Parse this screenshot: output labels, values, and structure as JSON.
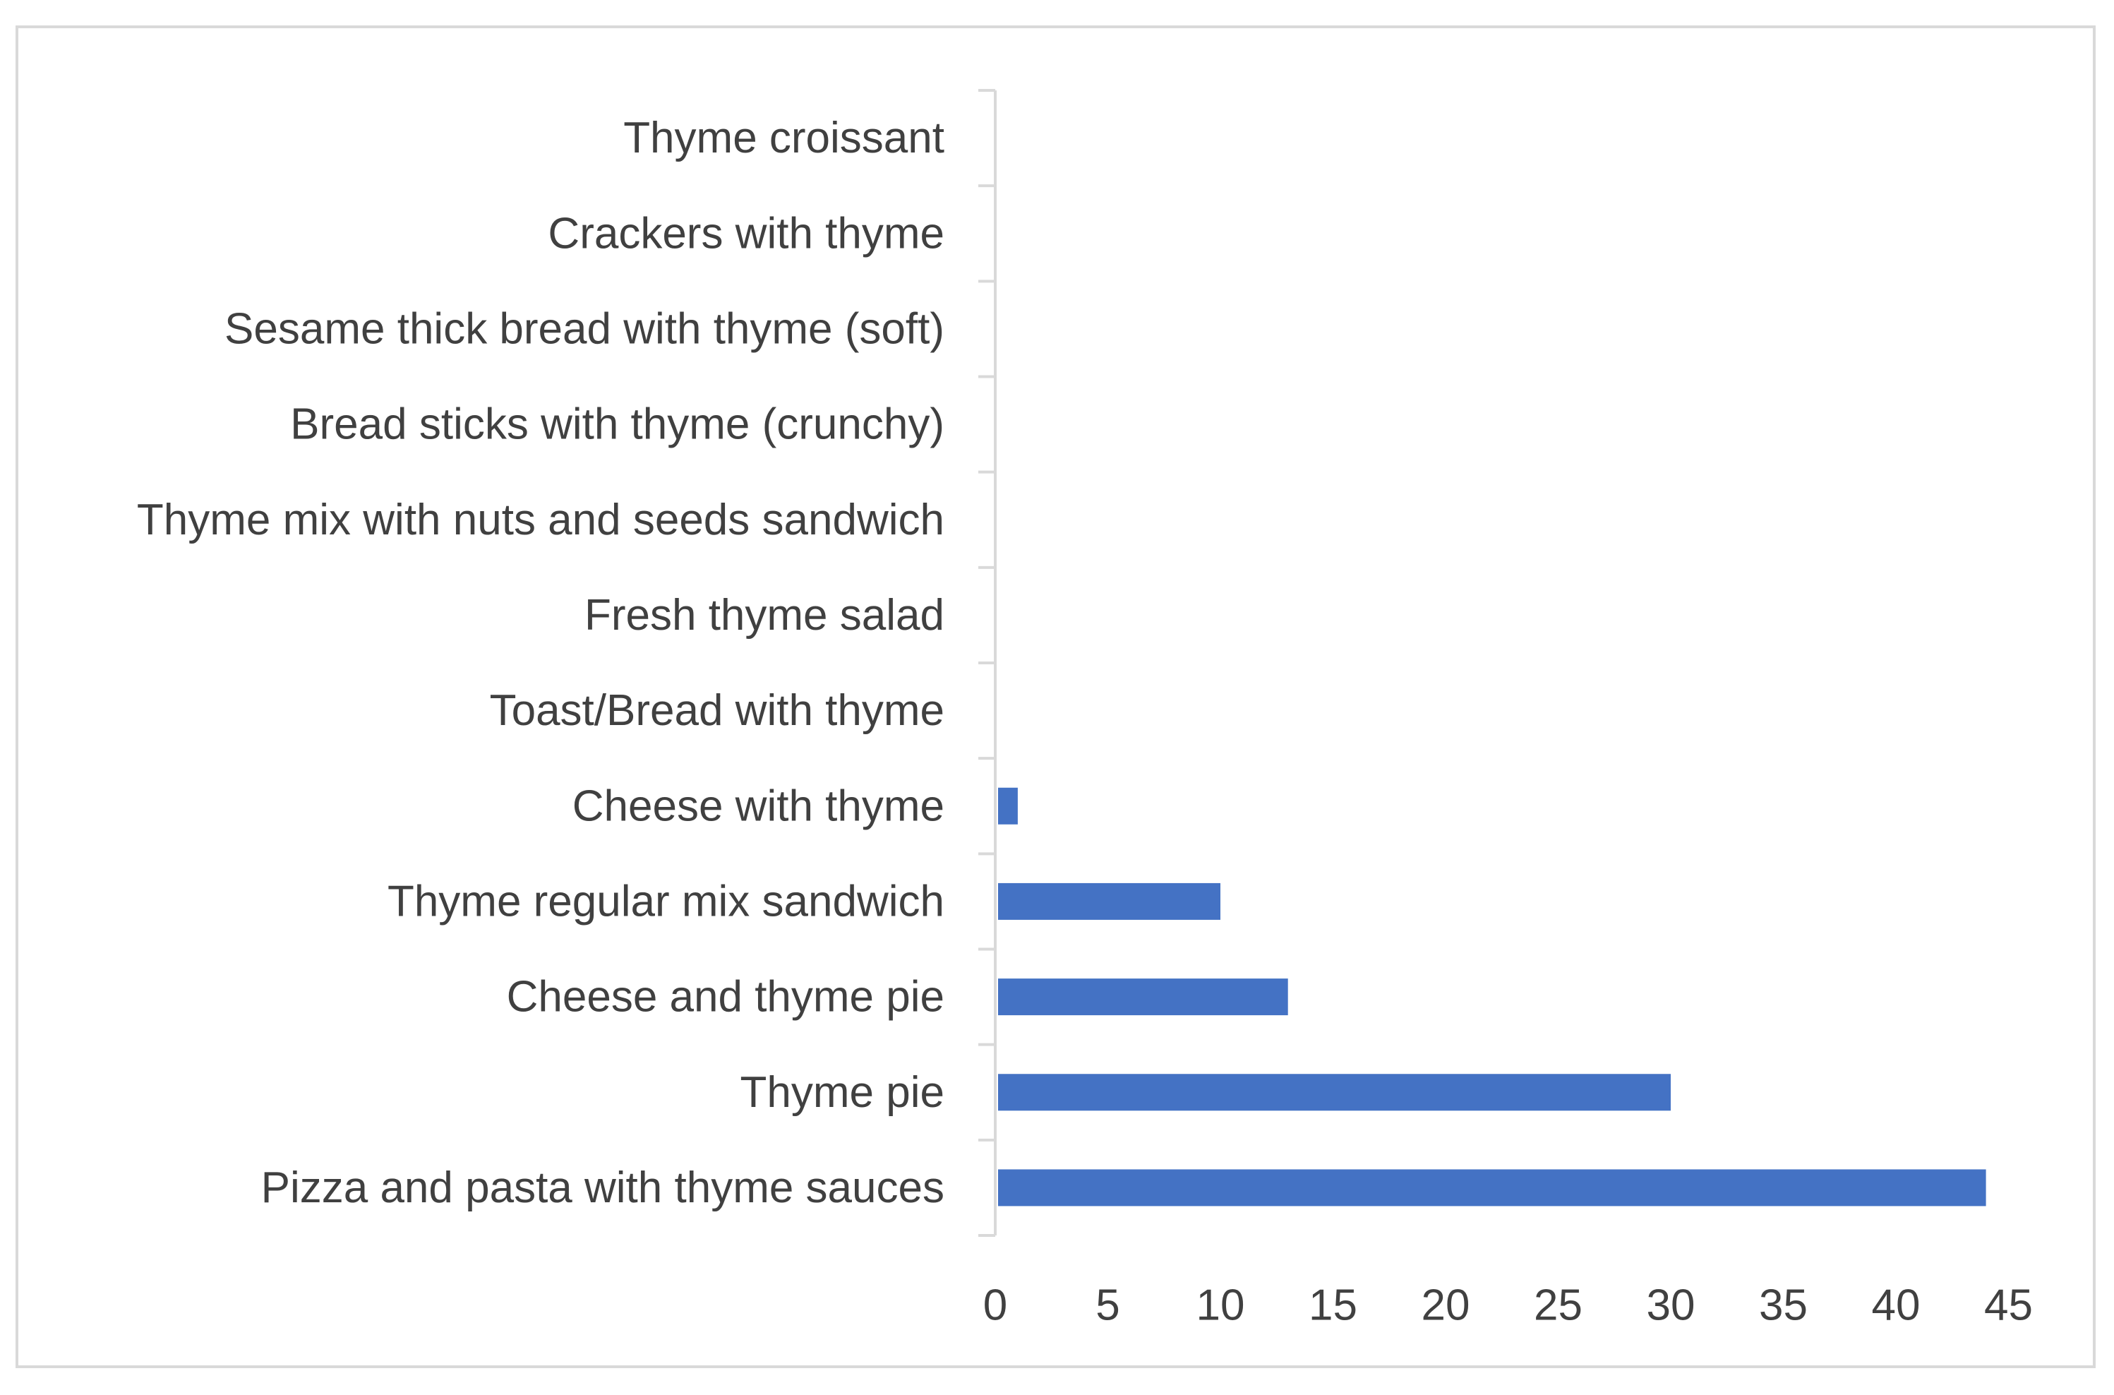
{
  "chart_data": {
    "type": "bar",
    "orientation": "horizontal",
    "title": "",
    "xlabel": "",
    "ylabel": "",
    "categories": [
      "Pizza and pasta with thyme sauces",
      "Thyme pie",
      "Cheese and thyme pie",
      "Thyme regular mix sandwich",
      "Cheese with thyme",
      "Toast/Bread with thyme",
      "Fresh thyme salad",
      "Thyme mix with nuts and seeds sandwich",
      "Bread sticks with thyme (crunchy)",
      "Sesame thick bread with thyme (soft)",
      "Crackers with thyme",
      "Thyme croissant"
    ],
    "values": [
      44,
      30,
      13,
      10,
      1,
      0,
      0,
      0,
      0,
      0,
      0,
      0
    ],
    "xlim": [
      0,
      45
    ],
    "xticks": [
      "0",
      "5",
      "10",
      "15",
      "20",
      "25",
      "30",
      "35",
      "40",
      "45"
    ],
    "grid": false,
    "legend": "none",
    "colors": {
      "bar": "#4472c4",
      "axis": "#d9d9d9",
      "text": "#404040",
      "frame": "#d9d9d9"
    }
  }
}
